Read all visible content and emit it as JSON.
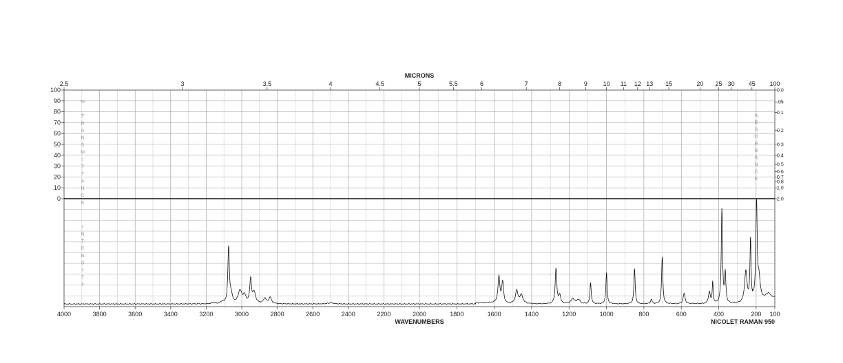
{
  "chart_data": {
    "type": "line",
    "title": "MICRONS",
    "xlabel": "WAVENUMBERS",
    "instrument": "NICOLET RAMAN 950",
    "x_range": [
      4000,
      100
    ],
    "x_ticks": [
      "4000",
      "3800",
      "3600",
      "3400",
      "3200",
      "3000",
      "2800",
      "2600",
      "2400",
      "2200",
      "2000",
      "1800",
      "1600",
      "1400",
      "1200",
      "1000",
      "800",
      "600",
      "400",
      "200",
      "100"
    ],
    "micron_ticks": [
      {
        "label": "2.5",
        "um": 2.5
      },
      {
        "label": "3",
        "um": 3
      },
      {
        "label": "3.5",
        "um": 3.5
      },
      {
        "label": "4",
        "um": 4
      },
      {
        "label": "4.5",
        "um": 4.5
      },
      {
        "label": "5",
        "um": 5
      },
      {
        "label": "5.5",
        "um": 5.5
      },
      {
        "label": "6",
        "um": 6
      },
      {
        "label": "7",
        "um": 7
      },
      {
        "label": "8",
        "um": 8
      },
      {
        "label": "9",
        "um": 9
      },
      {
        "label": "10",
        "um": 10
      },
      {
        "label": "11",
        "um": 11
      },
      {
        "label": "12",
        "um": 12
      },
      {
        "label": "13",
        "um": 13
      },
      {
        "label": "15",
        "um": 15
      },
      {
        "label": "20",
        "um": 20
      },
      {
        "label": "25",
        "um": 25
      },
      {
        "label": "30",
        "um": 30
      },
      {
        "label": "45",
        "um": 45
      },
      {
        "label": "100",
        "um": 100
      }
    ],
    "transmittance_ticks": [
      "100",
      "90",
      "80",
      "70",
      "60",
      "50",
      "40",
      "30",
      "20",
      "10",
      "0"
    ],
    "absorbance_ticks": [
      {
        "label": "0.0",
        "a": 0.0
      },
      {
        "label": ".05",
        "a": 0.05
      },
      {
        "label": "0.1",
        "a": 0.1
      },
      {
        "label": "0.2",
        "a": 0.2
      },
      {
        "label": "0.3",
        "a": 0.3
      },
      {
        "label": "0.4",
        "a": 0.4
      },
      {
        "label": "0.5",
        "a": 0.5
      },
      {
        "label": "0.6",
        "a": 0.6
      },
      {
        "label": "0.7",
        "a": 0.7
      },
      {
        "label": "0.8",
        "a": 0.8
      },
      {
        "label": "1.0",
        "a": 1.0
      },
      {
        "label": "2.0",
        "a": 2.0
      }
    ],
    "left_vertical_label": "% TRANSMITTANCE",
    "lower_vertical_label": "INTENSITY",
    "right_vertical_label": "ABSORBANCE",
    "grid": true,
    "series": [
      {
        "peaks": [
          {
            "x": 3160,
            "h": 0.01,
            "w": 12
          },
          {
            "x": 3110,
            "h": 0.02,
            "w": 8
          },
          {
            "x": 3074,
            "h": 0.52,
            "w": 5
          },
          {
            "x": 3060,
            "h": 0.08,
            "w": 8
          },
          {
            "x": 3010,
            "h": 0.12,
            "w": 12
          },
          {
            "x": 2985,
            "h": 0.07,
            "w": 10
          },
          {
            "x": 2950,
            "h": 0.22,
            "w": 6
          },
          {
            "x": 2930,
            "h": 0.1,
            "w": 10
          },
          {
            "x": 2870,
            "h": 0.05,
            "w": 10
          },
          {
            "x": 2840,
            "h": 0.06,
            "w": 8
          },
          {
            "x": 2500,
            "h": 0.01,
            "w": 20
          },
          {
            "x": 1575,
            "h": 0.24,
            "w": 6
          },
          {
            "x": 1555,
            "h": 0.19,
            "w": 6
          },
          {
            "x": 1480,
            "h": 0.12,
            "w": 8
          },
          {
            "x": 1455,
            "h": 0.08,
            "w": 10
          },
          {
            "x": 1270,
            "h": 0.33,
            "w": 5
          },
          {
            "x": 1250,
            "h": 0.08,
            "w": 6
          },
          {
            "x": 1180,
            "h": 0.05,
            "w": 10
          },
          {
            "x": 1150,
            "h": 0.04,
            "w": 10
          },
          {
            "x": 1085,
            "h": 0.2,
            "w": 4
          },
          {
            "x": 1000,
            "h": 0.29,
            "w": 4
          },
          {
            "x": 850,
            "h": 0.33,
            "w": 4
          },
          {
            "x": 760,
            "h": 0.04,
            "w": 5
          },
          {
            "x": 702,
            "h": 0.44,
            "w": 4
          },
          {
            "x": 585,
            "h": 0.1,
            "w": 6
          },
          {
            "x": 450,
            "h": 0.11,
            "w": 6
          },
          {
            "x": 432,
            "h": 0.2,
            "w": 3
          },
          {
            "x": 383,
            "h": 0.88,
            "w": 4
          },
          {
            "x": 365,
            "h": 0.28,
            "w": 4
          },
          {
            "x": 255,
            "h": 0.3,
            "w": 8
          },
          {
            "x": 230,
            "h": 0.58,
            "w": 3.5
          },
          {
            "x": 198,
            "h": 0.97,
            "w": 4
          },
          {
            "x": 185,
            "h": 0.2,
            "w": 8
          },
          {
            "x": 135,
            "h": 0.05,
            "w": 15
          }
        ]
      }
    ]
  }
}
